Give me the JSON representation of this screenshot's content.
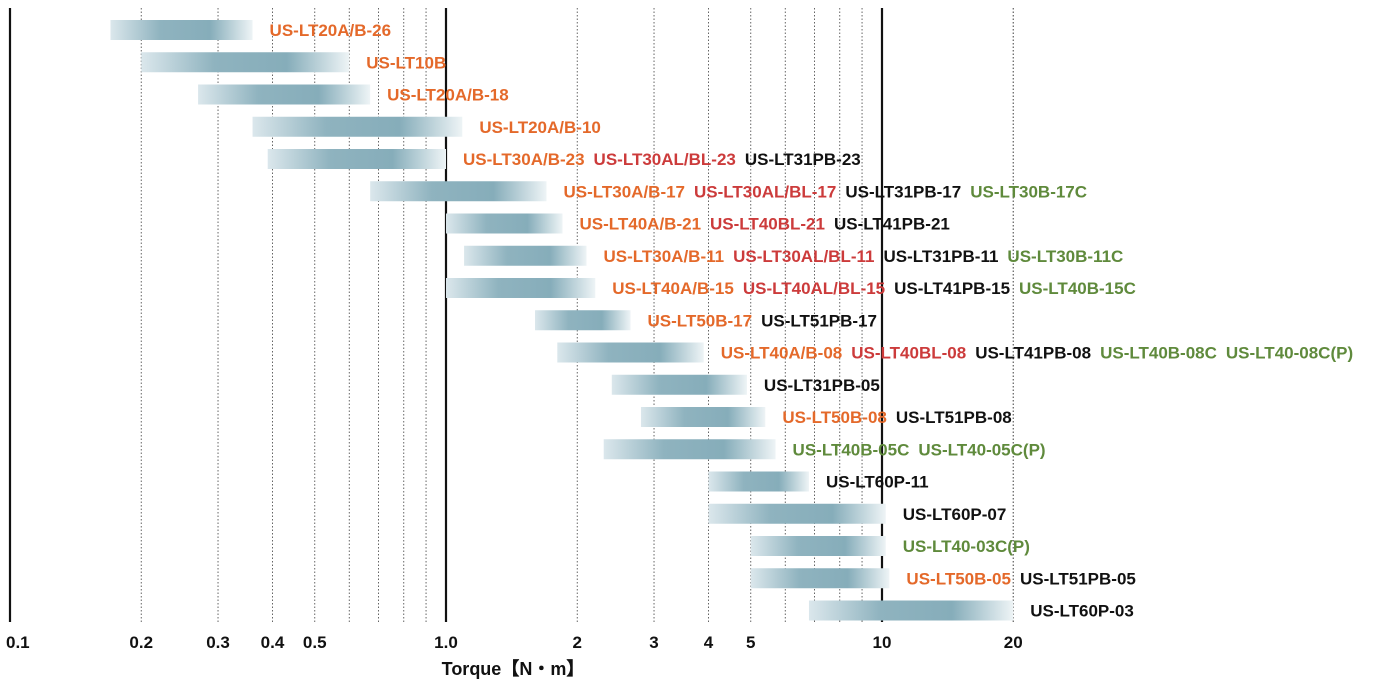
{
  "chart_data": {
    "type": "bar",
    "subtype": "floating-range",
    "title": "",
    "xlabel": "Torque【N・m】",
    "xscale": "log",
    "xlim": [
      0.1,
      20
    ],
    "x_ticks": [
      {
        "value": 0.1,
        "label": "0.1"
      },
      {
        "value": 0.2,
        "label": "0.2"
      },
      {
        "value": 0.3,
        "label": "0.3"
      },
      {
        "value": 0.4,
        "label": "0.4"
      },
      {
        "value": 0.5,
        "label": "0.5"
      },
      {
        "value": 1,
        "label": "1.0"
      },
      {
        "value": 2,
        "label": "2"
      },
      {
        "value": 3,
        "label": "3"
      },
      {
        "value": 4,
        "label": "4"
      },
      {
        "value": 5,
        "label": "5"
      },
      {
        "value": 10,
        "label": "10"
      },
      {
        "value": 20,
        "label": "20"
      }
    ],
    "grid": "vertical dotted minor lines, solid lines at 0.1, 1 and 10",
    "colors": {
      "orange": "#e4692a",
      "red": "#cc3b3b",
      "black": "#111111",
      "green": "#5f8a3c",
      "bar": "#7fa8b6"
    },
    "rows": [
      {
        "range": [
          0.17,
          0.36
        ],
        "labels": [
          {
            "text": "US-LT20A/B-26",
            "color": "orange"
          }
        ]
      },
      {
        "range": [
          0.2,
          0.6
        ],
        "labels": [
          {
            "text": "US-LT10B",
            "color": "orange"
          }
        ]
      },
      {
        "range": [
          0.27,
          0.67
        ],
        "labels": [
          {
            "text": "US-LT20A/B-18",
            "color": "orange"
          }
        ]
      },
      {
        "range": [
          0.36,
          1.09
        ],
        "labels": [
          {
            "text": "US-LT20A/B-10",
            "color": "orange"
          }
        ]
      },
      {
        "range": [
          0.39,
          1.0
        ],
        "labels": [
          {
            "text": "US-LT30A/B-23",
            "color": "orange"
          },
          {
            "text": "US-LT30AL/BL-23",
            "color": "red"
          },
          {
            "text": "US-LT31PB-23",
            "color": "black"
          }
        ]
      },
      {
        "range": [
          0.67,
          1.7
        ],
        "labels": [
          {
            "text": "US-LT30A/B-17",
            "color": "orange"
          },
          {
            "text": "US-LT30AL/BL-17",
            "color": "red"
          },
          {
            "text": "US-LT31PB-17",
            "color": "black"
          },
          {
            "text": "US-LT30B-17C",
            "color": "green"
          }
        ]
      },
      {
        "range": [
          1.0,
          1.85
        ],
        "labels": [
          {
            "text": "US-LT40A/B-21",
            "color": "orange"
          },
          {
            "text": "US-LT40BL-21",
            "color": "red"
          },
          {
            "text": "US-LT41PB-21",
            "color": "black"
          }
        ]
      },
      {
        "range": [
          1.1,
          2.1
        ],
        "labels": [
          {
            "text": "US-LT30A/B-11",
            "color": "orange"
          },
          {
            "text": "US-LT30AL/BL-11",
            "color": "red"
          },
          {
            "text": "US-LT31PB-11",
            "color": "black"
          },
          {
            "text": "US-LT30B-11C",
            "color": "green"
          }
        ]
      },
      {
        "range": [
          1.0,
          2.2
        ],
        "labels": [
          {
            "text": "US-LT40A/B-15",
            "color": "orange"
          },
          {
            "text": "US-LT40AL/BL-15",
            "color": "red"
          },
          {
            "text": "US-LT41PB-15",
            "color": "black"
          },
          {
            "text": "US-LT40B-15C",
            "color": "green"
          }
        ]
      },
      {
        "range": [
          1.6,
          2.65
        ],
        "labels": [
          {
            "text": "US-LT50B-17",
            "color": "orange"
          },
          {
            "text": "US-LT51PB-17",
            "color": "black"
          }
        ]
      },
      {
        "range": [
          1.8,
          3.9
        ],
        "labels": [
          {
            "text": "US-LT40A/B-08",
            "color": "orange"
          },
          {
            "text": "US-LT40BL-08",
            "color": "red"
          },
          {
            "text": "US-LT41PB-08",
            "color": "black"
          },
          {
            "text": "US-LT40B-08C",
            "color": "green"
          },
          {
            "text": "US-LT40-08C(P)",
            "color": "green"
          }
        ]
      },
      {
        "range": [
          2.4,
          4.9
        ],
        "labels": [
          {
            "text": "US-LT31PB-05",
            "color": "black"
          }
        ]
      },
      {
        "range": [
          2.8,
          5.4
        ],
        "labels": [
          {
            "text": "US-LT50B-08",
            "color": "orange"
          },
          {
            "text": "US-LT51PB-08",
            "color": "black"
          }
        ]
      },
      {
        "range": [
          2.3,
          5.7
        ],
        "labels": [
          {
            "text": "US-LT40B-05C",
            "color": "green"
          },
          {
            "text": "US-LT40-05C(P)",
            "color": "green"
          }
        ]
      },
      {
        "range": [
          4.0,
          6.8
        ],
        "labels": [
          {
            "text": "US-LT60P-11",
            "color": "black"
          }
        ]
      },
      {
        "range": [
          4.0,
          10.2
        ],
        "labels": [
          {
            "text": "US-LT60P-07",
            "color": "black"
          }
        ]
      },
      {
        "range": [
          5.0,
          10.2
        ],
        "labels": [
          {
            "text": "US-LT40-03C(P)",
            "color": "green"
          }
        ]
      },
      {
        "range": [
          5.0,
          10.4
        ],
        "labels": [
          {
            "text": "US-LT50B-05",
            "color": "orange"
          },
          {
            "text": "US-LT51PB-05",
            "color": "black"
          }
        ]
      },
      {
        "range": [
          6.8,
          20.0
        ],
        "labels": [
          {
            "text": "US-LT60P-03",
            "color": "black"
          }
        ]
      }
    ]
  }
}
